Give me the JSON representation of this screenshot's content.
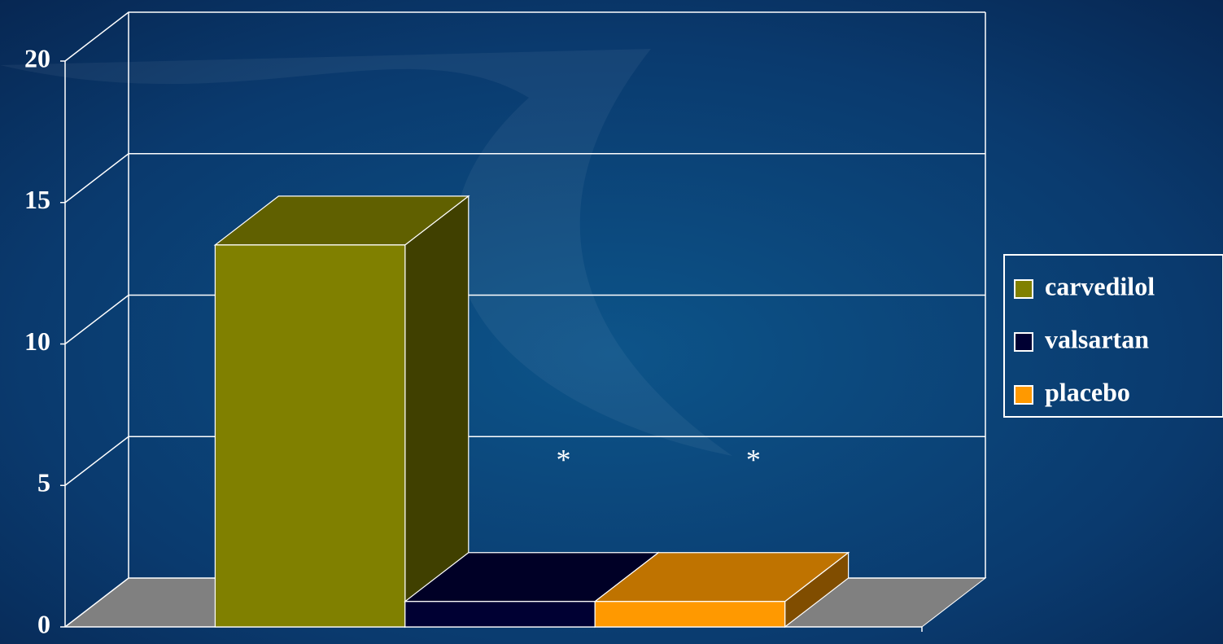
{
  "chart_data": {
    "type": "bar3d",
    "categories": [
      null
    ],
    "series": [
      {
        "name": "carvedilol",
        "color": "#808000",
        "values": [
          13.5
        ]
      },
      {
        "name": "valsartan",
        "color": "#000033",
        "values": [
          0.9
        ]
      },
      {
        "name": "placebo",
        "color": "#ff9900",
        "values": [
          0.9
        ]
      }
    ],
    "annotations": [
      "*",
      "*"
    ],
    "ylim": [
      0,
      20
    ],
    "yticks": [
      0,
      5,
      10,
      15,
      20
    ],
    "grid": true,
    "legend": "right"
  }
}
